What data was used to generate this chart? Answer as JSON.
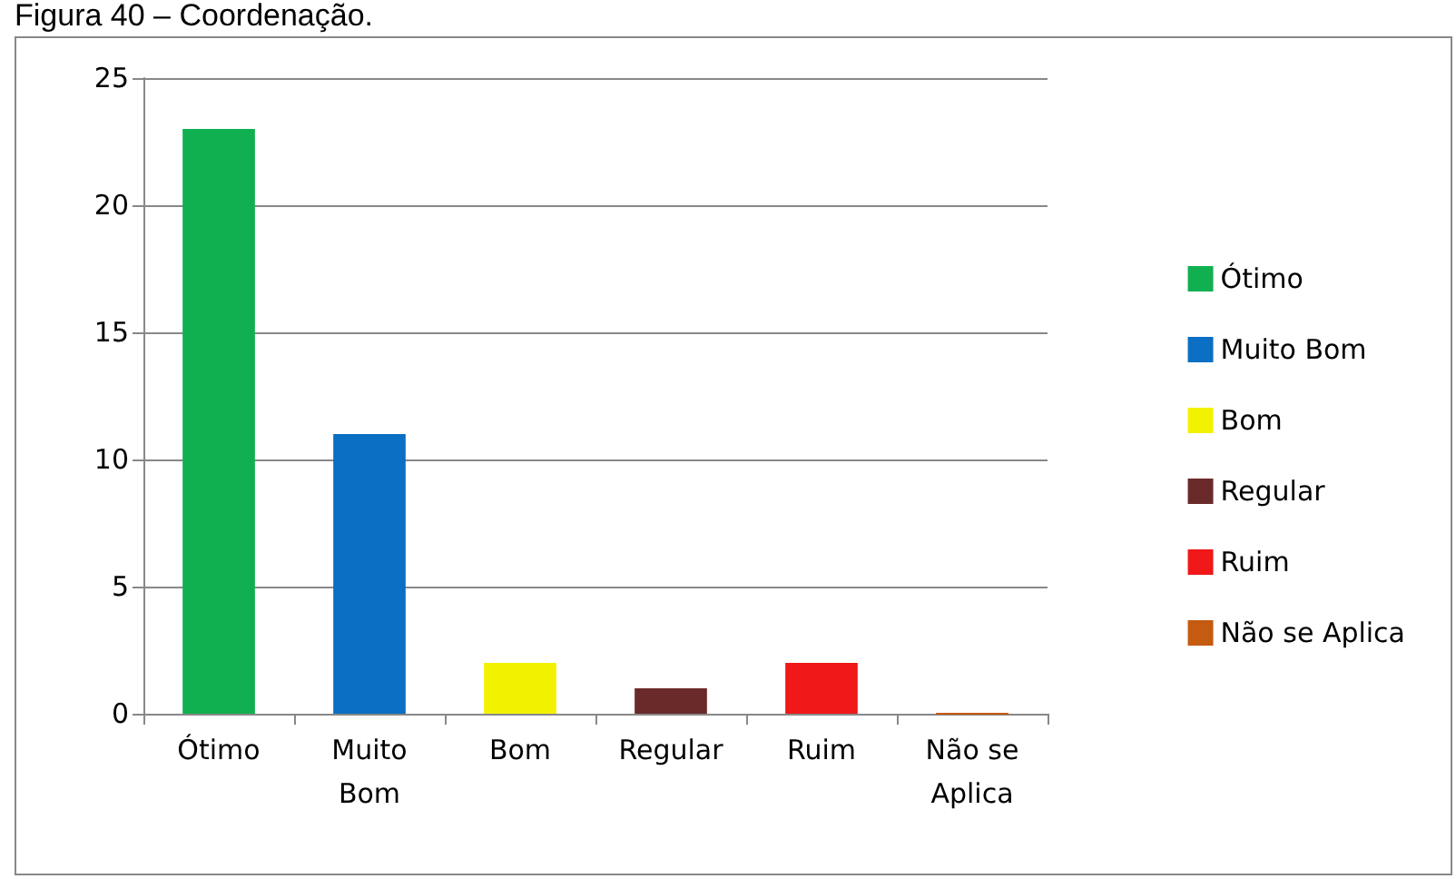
{
  "chart_data": {
    "type": "bar",
    "title": "Figura 40 – Coordenação.",
    "categories": [
      "Ótimo",
      "Muito Bom",
      "Bom",
      "Regular",
      "Ruim",
      "Não se Aplica"
    ],
    "series": [
      {
        "name": "Ótimo",
        "color": "#10b050",
        "values": [
          23,
          null,
          null,
          null,
          null,
          null
        ]
      },
      {
        "name": "Muito Bom",
        "color": "#0b6fc4",
        "values": [
          null,
          11,
          null,
          null,
          null,
          null
        ]
      },
      {
        "name": "Bom",
        "color": "#f2f200",
        "values": [
          null,
          null,
          2,
          null,
          null,
          null
        ]
      },
      {
        "name": "Regular",
        "color": "#6b2a2a",
        "values": [
          null,
          null,
          null,
          1,
          null,
          null
        ]
      },
      {
        "name": "Ruim",
        "color": "#f01818",
        "values": [
          null,
          null,
          null,
          null,
          2,
          null
        ]
      },
      {
        "name": "Não se Aplica",
        "color": "#c55a11",
        "values": [
          null,
          null,
          null,
          null,
          null,
          0
        ]
      }
    ],
    "ylim": [
      0,
      25
    ],
    "yticks": [
      0,
      5,
      10,
      15,
      20,
      25
    ],
    "grid": "y",
    "legend": "right"
  }
}
